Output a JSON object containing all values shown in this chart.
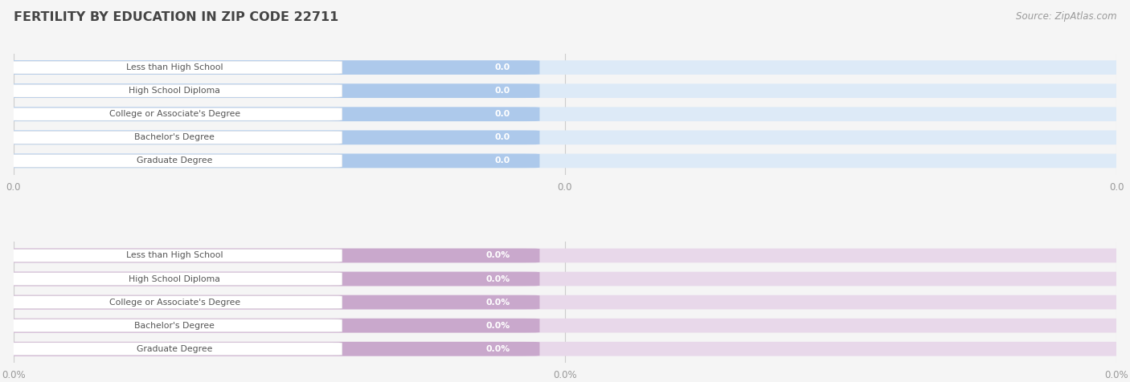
{
  "title": "FERTILITY BY EDUCATION IN ZIP CODE 22711",
  "source": "Source: ZipAtlas.com",
  "categories": [
    "Less than High School",
    "High School Diploma",
    "College or Associate's Degree",
    "Bachelor's Degree",
    "Graduate Degree"
  ],
  "top_values": [
    0.0,
    0.0,
    0.0,
    0.0,
    0.0
  ],
  "bottom_values": [
    0.0,
    0.0,
    0.0,
    0.0,
    0.0
  ],
  "top_bar_color": "#adc9eb",
  "top_bar_label_color": "#ffffff",
  "top_bg_color": "#ddeaf7",
  "bottom_bar_color": "#c9a8cc",
  "bottom_bar_label_color": "#ffffff",
  "bottom_bg_color": "#e8d8ea",
  "label_bg_color": "#ffffff",
  "label_text_color": "#555555",
  "tick_label_color": "#999999",
  "title_color": "#444444",
  "source_color": "#999999",
  "page_bg_color": "#f5f5f5",
  "panel_bg_color": "#f5f5f5",
  "top_unit": "",
  "bottom_unit": "%",
  "figsize": [
    14.06,
    4.76
  ],
  "dpi": 100
}
